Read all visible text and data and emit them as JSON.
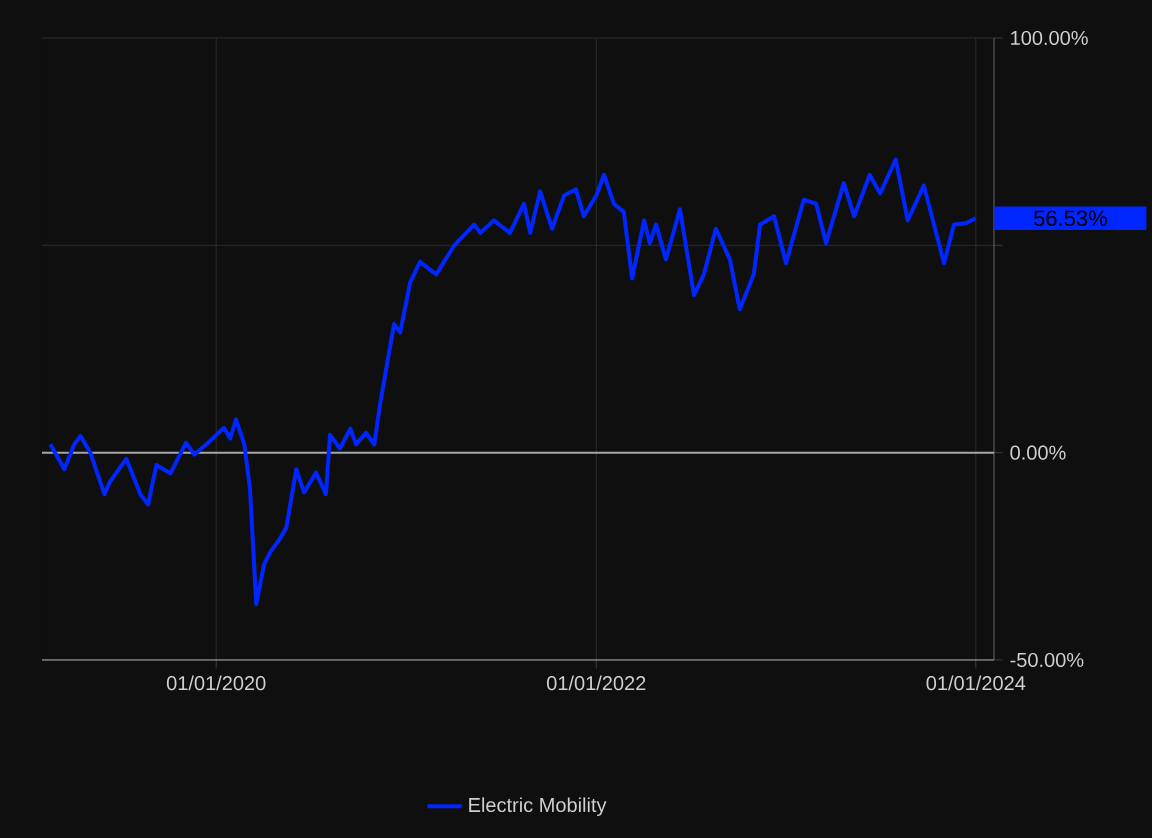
{
  "chart_data": {
    "type": "line",
    "x": [
      "2019-02-16",
      "2019-03-15",
      "2019-04-03",
      "2019-04-15",
      "2019-05-04",
      "2019-05-31",
      "2019-06-11",
      "2019-07-12",
      "2019-08-08",
      "2019-08-23",
      "2019-09-08",
      "2019-10-05",
      "2019-11-04",
      "2019-11-20",
      "2019-12-13",
      "2020-01-16",
      "2020-01-28",
      "2020-02-08",
      "2020-02-24",
      "2020-03-06",
      "2020-03-18",
      "2020-04-02",
      "2020-04-14",
      "2020-05-03",
      "2020-05-15",
      "2020-06-03",
      "2020-06-18",
      "2020-07-11",
      "2020-07-30",
      "2020-08-07",
      "2020-08-26",
      "2020-09-15",
      "2020-09-26",
      "2020-10-15",
      "2020-10-31",
      "2020-11-11",
      "2020-12-08",
      "2020-12-20",
      "2021-01-08",
      "2021-01-27",
      "2021-02-27",
      "2021-04-03",
      "2021-05-11",
      "2021-05-23",
      "2021-06-18",
      "2021-07-19",
      "2021-08-15",
      "2021-08-27",
      "2021-09-15",
      "2021-10-08",
      "2021-10-31",
      "2021-11-23",
      "2021-12-08",
      "2022-01-01",
      "2022-01-16",
      "2022-02-04",
      "2022-02-23",
      "2022-03-11",
      "2022-04-03",
      "2022-04-14",
      "2022-04-26",
      "2022-05-15",
      "2022-06-11",
      "2022-07-08",
      "2022-07-27",
      "2022-08-19",
      "2022-09-15",
      "2022-10-04",
      "2022-10-31",
      "2022-11-12",
      "2022-12-09",
      "2023-01-01",
      "2023-02-04",
      "2023-02-28",
      "2023-03-19",
      "2023-04-22",
      "2023-05-12",
      "2023-06-11",
      "2023-07-01",
      "2023-07-31",
      "2023-08-23",
      "2023-09-23",
      "2023-11-01",
      "2023-11-20",
      "2023-12-13",
      "2024-01-01"
    ],
    "series": [
      {
        "name": "Electric Mobility",
        "color": "#0026ff",
        "values": [
          2,
          -4,
          2,
          4,
          0,
          -10,
          -7,
          -1.5,
          -10,
          -12.5,
          -3,
          -5,
          2.4,
          -0.5,
          2,
          6,
          3.4,
          8,
          2,
          -8.7,
          -36.5,
          -27,
          -24,
          -20.7,
          -18,
          -4,
          -9.6,
          -4.8,
          -10,
          4.3,
          1,
          5.8,
          2,
          4.8,
          2,
          11.5,
          31,
          29,
          41,
          46,
          43,
          50,
          55,
          53,
          56,
          53,
          60,
          53,
          63,
          54,
          62,
          63.5,
          57,
          62,
          67,
          60,
          58,
          42,
          56,
          50.5,
          55,
          46.6,
          58.7,
          38,
          43,
          54,
          46.6,
          34.6,
          43,
          55,
          57,
          45.7,
          61,
          60,
          50.5,
          65,
          57,
          67,
          62.5,
          70.7,
          56,
          64.4,
          45.7,
          55,
          55.3,
          56.53
        ]
      }
    ],
    "xlim": [
      "2019-01-31",
      "2024-02-05"
    ],
    "xticks": [
      {
        "value": "2020-01-01",
        "label": "01/01/2020"
      },
      {
        "value": "2022-01-01",
        "label": "01/01/2022"
      },
      {
        "value": "2024-01-01",
        "label": "01/01/2024"
      }
    ],
    "ylim": [
      -50,
      100
    ],
    "yticks": [
      {
        "value": -50,
        "label": "-50.00%"
      },
      {
        "value": 0,
        "label": "0.00%"
      },
      {
        "value": 50,
        "label": null
      },
      {
        "value": 100,
        "label": "100.00%"
      }
    ],
    "ref_lines": [
      {
        "axis": "y",
        "value": 0,
        "color": "#a6a6a6"
      }
    ],
    "annotations": [
      "56.53%"
    ],
    "grid": true,
    "legend": "bottom",
    "marker": "none",
    "line_style": "solid"
  }
}
